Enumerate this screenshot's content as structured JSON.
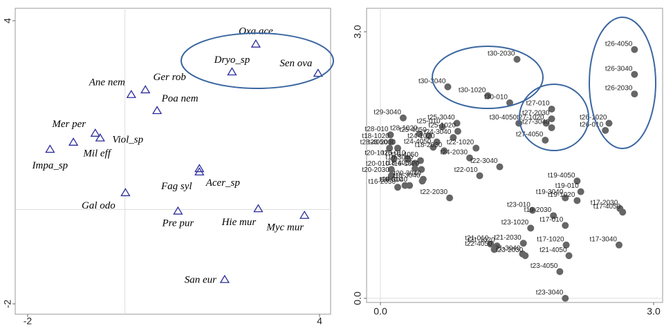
{
  "chart_data": [
    {
      "type": "scatter",
      "xlim": [
        -2,
        4
      ],
      "ylim": [
        -2,
        4
      ],
      "xticks": [
        -2,
        4
      ],
      "yticks": [
        -2,
        4
      ],
      "zero_lines": true,
      "series": [
        {
          "color": "#2b2b9a",
          "marker": "triangle",
          "labels": [
            "Oxa ace",
            "Dryo_sp",
            "Sen ova",
            "Ger rob",
            "Ane nem",
            "Poa nem",
            "Mer per",
            "Viol_sp",
            "Mil eff",
            "Impa_sp",
            "Fag syl",
            "Acer_sp",
            "Gal odo",
            "Pre pur",
            "Hie mur",
            "Myc mur",
            "San eur"
          ],
          "x": [
            2.69,
            2.2,
            3.97,
            0.42,
            0.13,
            0.66,
            -0.61,
            -0.51,
            -1.06,
            -1.54,
            1.53,
            1.53,
            0.01,
            1.09,
            2.74,
            3.69,
            2.05
          ],
          "values": [
            3.5,
            2.91,
            2.88,
            2.53,
            2.43,
            2.09,
            1.61,
            1.51,
            1.42,
            1.27,
            0.86,
            0.79,
            0.35,
            -0.04,
            0.01,
            -0.13,
            -1.49
          ]
        }
      ]
    },
    {
      "type": "scatter",
      "xlim": [
        0,
        3
      ],
      "ylim": [
        0,
        3
      ],
      "xticks": [
        {
          "value": 0,
          "label": "0.0"
        },
        {
          "value": 3,
          "label": "3.0"
        }
      ],
      "yticks": [
        {
          "value": 0,
          "label": "0.0"
        },
        {
          "value": 3,
          "label": "3.0"
        }
      ],
      "zero_lines": true,
      "series": [
        {
          "color": "#666666",
          "marker": "circle",
          "labels": [
            "t26-4050",
            "t26-3040",
            "t26-2030",
            "t26-1020",
            "t26-010",
            "t30-2030",
            "t30-3040",
            "t30-1020",
            "t30-010",
            "t27-010",
            "t27-2030",
            "t27-1020",
            "t27-3040",
            "t27-4050",
            "t30-4050",
            "t29-3040",
            "t25-3040",
            "t25-010",
            "t25-1020",
            "t24-3040",
            "t28-010",
            "t28-1020",
            "t25-4050",
            "t18-1020",
            "t22-1020",
            "t28-4050",
            "t28-2030",
            "t24-1020",
            "t24-4050",
            "t18-2030",
            "t24-2030",
            "t16-010",
            "t20-1020",
            "t16-3040",
            "t16-4050",
            "t16-1020",
            "t20-010",
            "t20-2030",
            "t18-4050",
            "t22-3040",
            "t20-3040",
            "t22-010",
            "t18-3040",
            "t18-010",
            "t16-2030",
            "t28-3040",
            "t22-2030",
            "t19-4050",
            "t19-010",
            "t19-3040",
            "t19-1020",
            "t17-2030",
            "t17-4050",
            "t23-010",
            "t19-2030",
            "t23-1020",
            "t17-010",
            "t21-2030",
            "t21-010",
            "t21-1020",
            "t21-3040",
            "t17-1020",
            "t17-3040",
            "t22-4050",
            "t23-2030",
            "t21-4050",
            "t23-4050",
            "t23-3040"
          ],
          "x": [
            2.79,
            2.79,
            2.79,
            2.51,
            2.47,
            1.5,
            0.74,
            1.18,
            1.42,
            1.88,
            1.88,
            1.82,
            1.88,
            1.81,
            1.52,
            0.25,
            0.84,
            0.68,
            0.85,
            0.8,
            0.11,
            0.43,
            0.53,
            0.12,
            1.05,
            0.1,
            0.19,
            0.62,
            0.58,
            0.7,
            0.98,
            0.3,
            0.15,
            0.38,
            0.44,
            0.45,
            0.12,
            0.12,
            0.38,
            1.31,
            0.47,
            1.09,
            0.46,
            0.27,
            0.19,
            0.32,
            0.76,
            2.16,
            2.2,
            2.03,
            2.16,
            2.63,
            2.66,
            1.67,
            1.9,
            1.65,
            2.03,
            1.57,
            1.21,
            1.28,
            1.56,
            2.04,
            2.62,
            1.25,
            1.59,
            2.07,
            1.97,
            2.03
          ],
          "values": [
            2.8,
            2.52,
            2.3,
            1.97,
            1.89,
            2.69,
            2.38,
            2.28,
            2.2,
            2.13,
            2.02,
            1.97,
            1.92,
            1.78,
            1.97,
            2.03,
            1.97,
            1.93,
            1.88,
            1.81,
            1.84,
            1.85,
            1.83,
            1.76,
            1.69,
            1.69,
            1.69,
            1.76,
            1.7,
            1.66,
            1.58,
            1.57,
            1.57,
            1.52,
            1.55,
            1.45,
            1.45,
            1.38,
            1.46,
            1.48,
            1.34,
            1.38,
            1.32,
            1.27,
            1.25,
            1.27,
            1.13,
            1.32,
            1.2,
            1.13,
            1.1,
            1.01,
            0.97,
            0.99,
            0.93,
            0.79,
            0.82,
            0.62,
            0.61,
            0.59,
            0.5,
            0.6,
            0.6,
            0.55,
            0.48,
            0.48,
            0.3,
            0.0
          ]
        }
      ]
    }
  ]
}
